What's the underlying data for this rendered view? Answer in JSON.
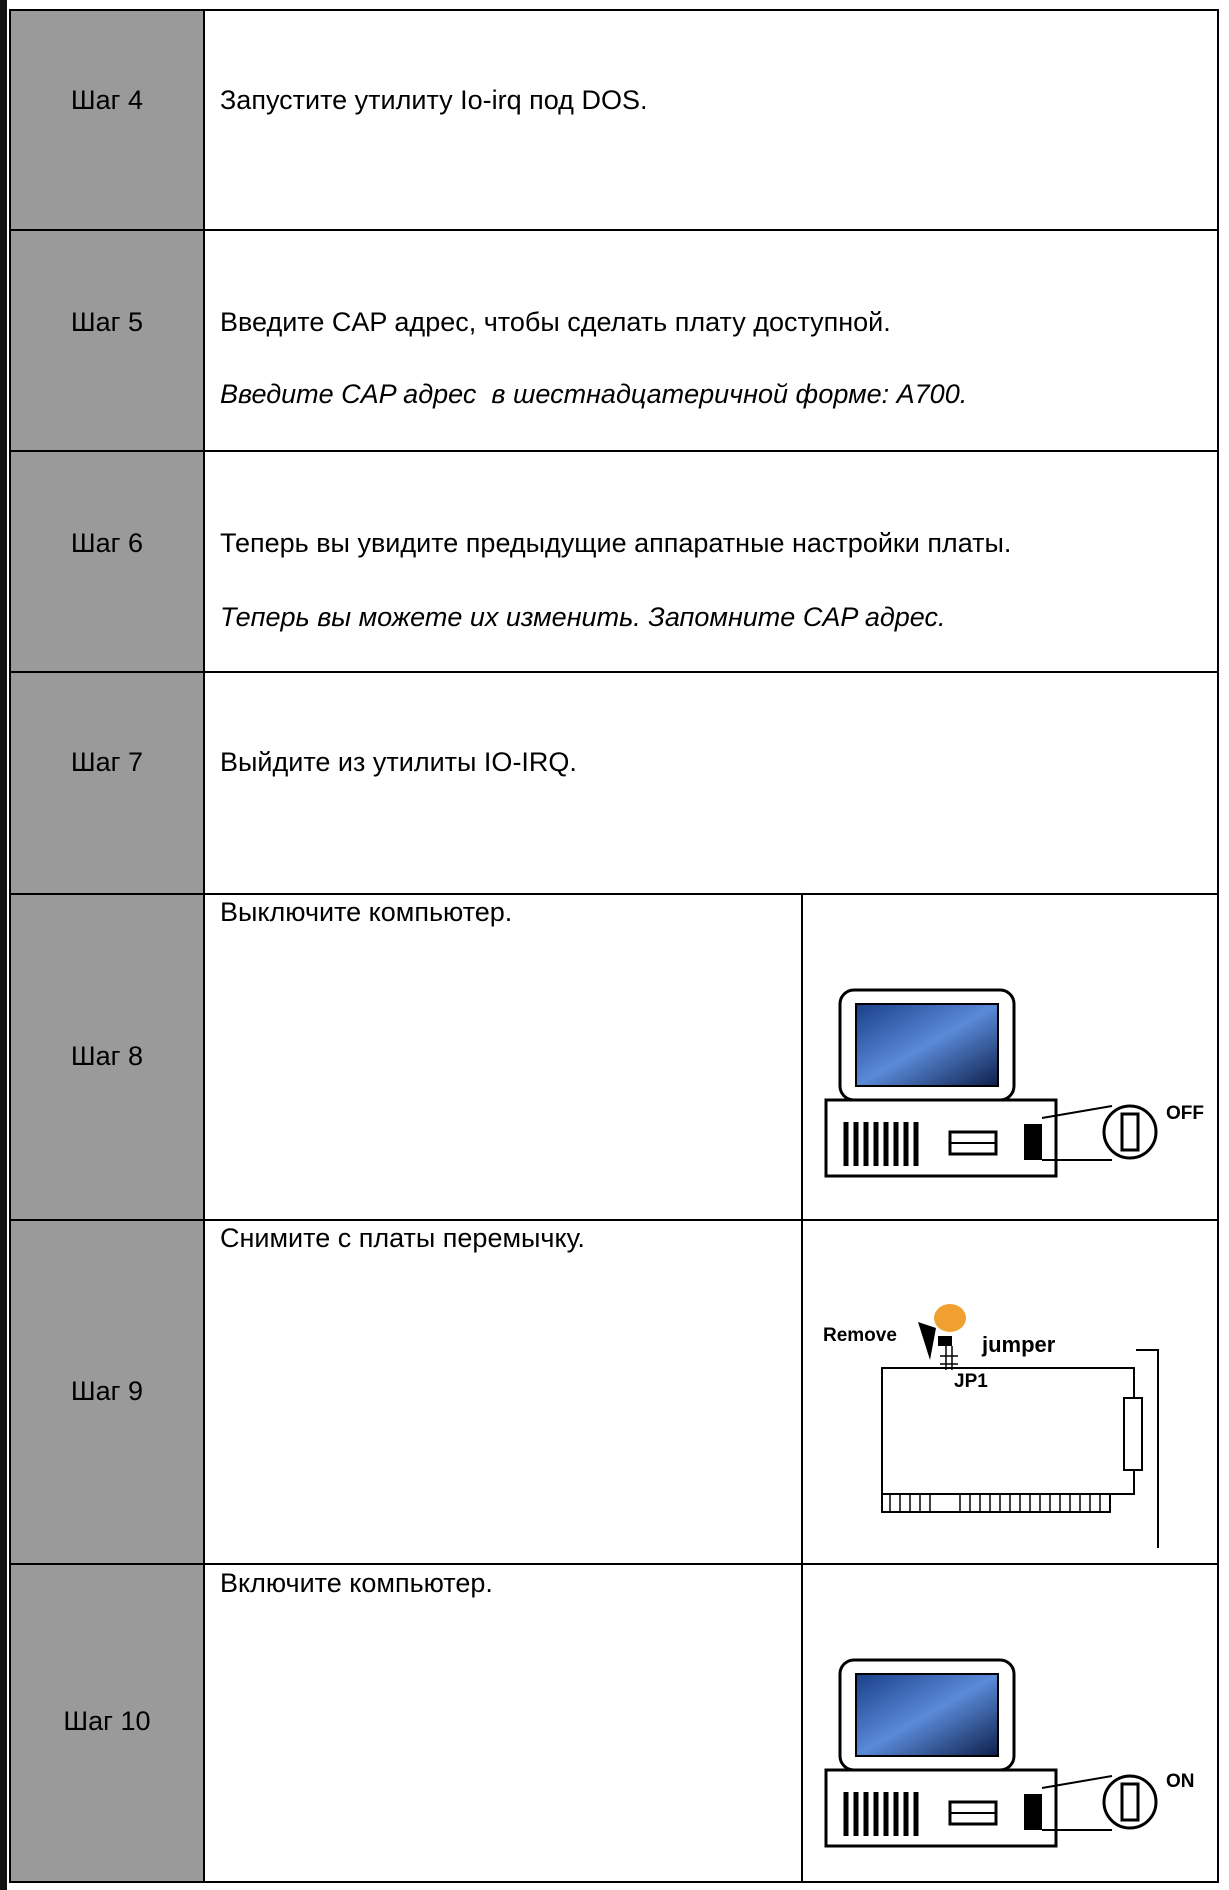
{
  "rows": [
    {
      "step": "Шаг 4",
      "lines": [
        "Запустите утилиту Io-irq под DOS."
      ]
    },
    {
      "step": "Шаг 5",
      "lines": [
        "Введите CAP адрес, чтобы сделать плату доступной.",
        "Введите CAP адрес  в шестнадцатеричной форме: A700."
      ]
    },
    {
      "step": "Шаг 6",
      "lines": [
        "Теперь вы увидите предыдущие аппаратные настройки платы.",
        "Теперь вы можете их изменить. Запомните CAP адрес."
      ]
    },
    {
      "step": "Шаг 7",
      "lines": [
        "Выйдите из утилиты IO-IRQ."
      ]
    },
    {
      "step": "Шаг 8",
      "lines": [
        "Выключите компьютер."
      ],
      "image_labels": [
        "OFF"
      ]
    },
    {
      "step": "Шаг 9",
      "lines": [
        "Снимите с платы перемычку."
      ],
      "image_labels": [
        "Remove",
        "jumper",
        "JP1"
      ]
    },
    {
      "step": "Шаг 10",
      "lines": [
        "Включите компьютер."
      ],
      "image_labels": [
        "ON"
      ]
    }
  ]
}
